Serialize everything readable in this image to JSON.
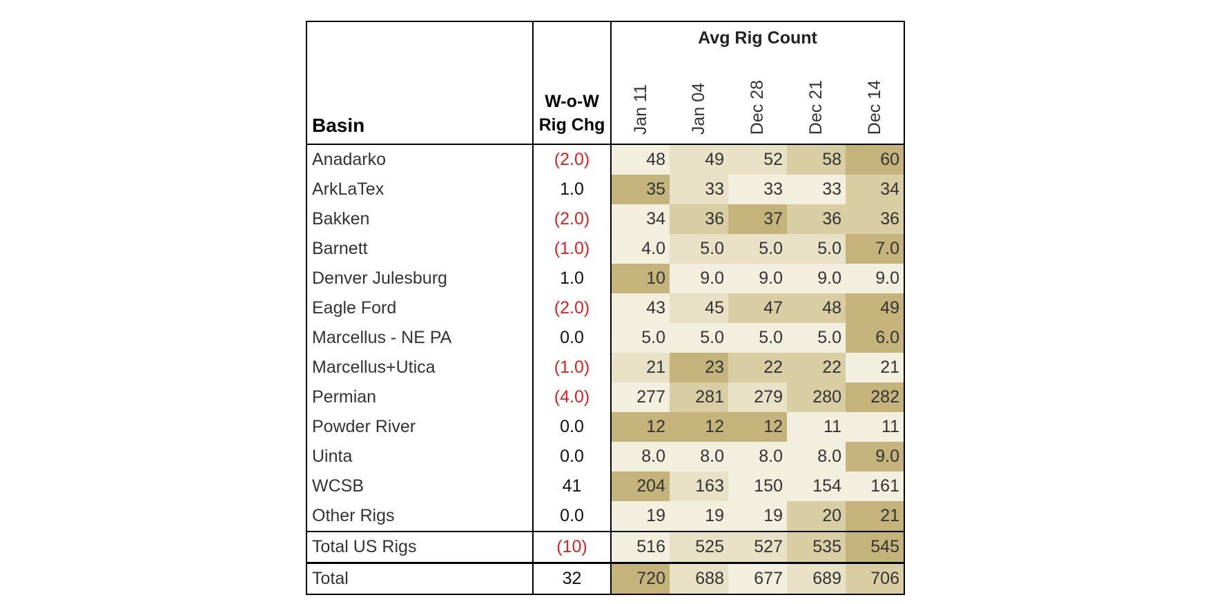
{
  "table": {
    "basin_header": "Basin",
    "chg_header_line1": "W-o-W",
    "chg_header_line2": "Rig Chg",
    "group_header": "Avg Rig Count",
    "dates": [
      "Jan 11",
      "Jan 04",
      "Dec 28",
      "Dec 21",
      "Dec 14"
    ],
    "rows": [
      {
        "basin": "Anadarko",
        "chg": "(2.0)",
        "neg": true,
        "values": [
          "48",
          "49",
          "52",
          "58",
          "60"
        ],
        "shade": [
          1,
          2,
          2,
          3,
          4
        ]
      },
      {
        "basin": "ArkLaTex",
        "chg": "1.0",
        "neg": false,
        "values": [
          "35",
          "33",
          "33",
          "33",
          "34"
        ],
        "shade": [
          4,
          2,
          1,
          1,
          3
        ]
      },
      {
        "basin": "Bakken",
        "chg": "(2.0)",
        "neg": true,
        "values": [
          "34",
          "36",
          "37",
          "36",
          "36"
        ],
        "shade": [
          1,
          3,
          4,
          3,
          3
        ]
      },
      {
        "basin": "Barnett",
        "chg": "(1.0)",
        "neg": true,
        "values": [
          "4.0",
          "5.0",
          "5.0",
          "5.0",
          "7.0"
        ],
        "shade": [
          1,
          2,
          2,
          2,
          4
        ]
      },
      {
        "basin": "Denver Julesburg",
        "chg": "1.0",
        "neg": false,
        "values": [
          "10",
          "9.0",
          "9.0",
          "9.0",
          "9.0"
        ],
        "shade": [
          4,
          1,
          1,
          1,
          1
        ]
      },
      {
        "basin": "Eagle Ford",
        "chg": "(2.0)",
        "neg": true,
        "values": [
          "43",
          "45",
          "47",
          "48",
          "49"
        ],
        "shade": [
          1,
          2,
          3,
          3,
          4
        ]
      },
      {
        "basin": "Marcellus - NE PA",
        "chg": "0.0",
        "neg": false,
        "values": [
          "5.0",
          "5.0",
          "5.0",
          "5.0",
          "6.0"
        ],
        "shade": [
          1,
          1,
          1,
          1,
          4
        ]
      },
      {
        "basin": "Marcellus+Utica",
        "chg": "(1.0)",
        "neg": true,
        "values": [
          "21",
          "23",
          "22",
          "22",
          "21"
        ],
        "shade": [
          2,
          4,
          3,
          3,
          1
        ]
      },
      {
        "basin": "Permian",
        "chg": "(4.0)",
        "neg": true,
        "values": [
          "277",
          "281",
          "279",
          "280",
          "282"
        ],
        "shade": [
          1,
          3,
          2,
          3,
          4
        ]
      },
      {
        "basin": "Powder River",
        "chg": "0.0",
        "neg": false,
        "values": [
          "12",
          "12",
          "12",
          "11",
          "11"
        ],
        "shade": [
          4,
          4,
          4,
          1,
          1
        ]
      },
      {
        "basin": "Uinta",
        "chg": "0.0",
        "neg": false,
        "values": [
          "8.0",
          "8.0",
          "8.0",
          "8.0",
          "9.0"
        ],
        "shade": [
          1,
          1,
          1,
          1,
          4
        ]
      },
      {
        "basin": "WCSB",
        "chg": "41",
        "neg": false,
        "values": [
          "204",
          "163",
          "150",
          "154",
          "161"
        ],
        "shade": [
          4,
          2,
          1,
          1,
          1
        ]
      },
      {
        "basin": "Other Rigs",
        "chg": "0.0",
        "neg": false,
        "values": [
          "19",
          "19",
          "19",
          "20",
          "21"
        ],
        "shade": [
          1,
          1,
          1,
          3,
          4
        ]
      }
    ],
    "total_us": {
      "basin": "Total US Rigs",
      "chg": "(10)",
      "neg": true,
      "values": [
        "516",
        "525",
        "527",
        "535",
        "545"
      ],
      "shade": [
        1,
        2,
        2,
        3,
        4
      ]
    },
    "total": {
      "basin": "Total",
      "chg": "32",
      "neg": false,
      "values": [
        "720",
        "688",
        "677",
        "689",
        "706"
      ],
      "shade": [
        4,
        2,
        1,
        2,
        3
      ]
    }
  }
}
